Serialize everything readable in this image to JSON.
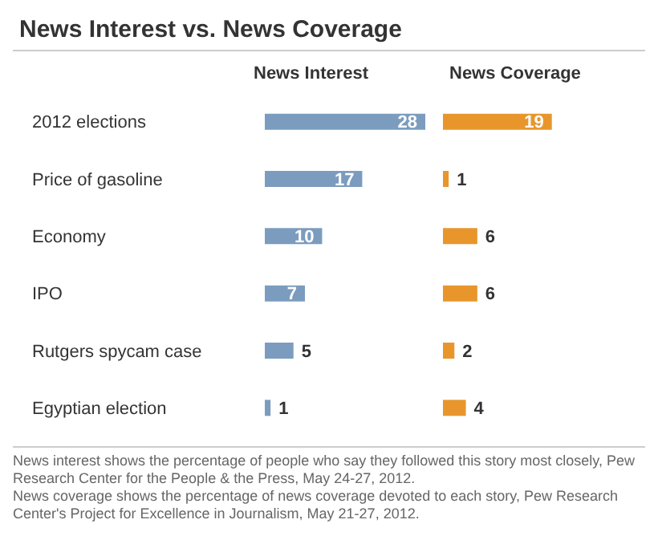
{
  "chart_data": [
    {
      "type": "bar",
      "orientation": "horizontal",
      "title": "News Interest vs. News Coverage",
      "categories": [
        "2012 elections",
        "Price of gasoline",
        "Economy",
        "IPO",
        "Rutgers spycam case",
        "Egyptian election"
      ],
      "series": [
        {
          "name": "News Interest",
          "color": "#7b9cbe",
          "values": [
            28,
            17,
            10,
            7,
            5,
            1
          ]
        }
      ],
      "data_labels": true
    },
    {
      "type": "bar",
      "orientation": "horizontal",
      "categories": [
        null,
        null,
        null,
        null,
        null,
        null
      ],
      "tick_labels": false,
      "series": [
        {
          "name": "News Coverage",
          "color": "#e8962c",
          "values": [
            19,
            1,
            6,
            6,
            2,
            4
          ]
        }
      ],
      "data_labels": true,
      "annotations": [
        "News interest shows the percentage of people who say they followed this story most closely, Pew Research Center for the People & the Press, May 24-27, 2012.",
        "News coverage shows the percentage of news coverage devoted to each story, Pew Research Center's Project for Excellence in Journalism, May 21-27, 2012."
      ]
    }
  ]
}
